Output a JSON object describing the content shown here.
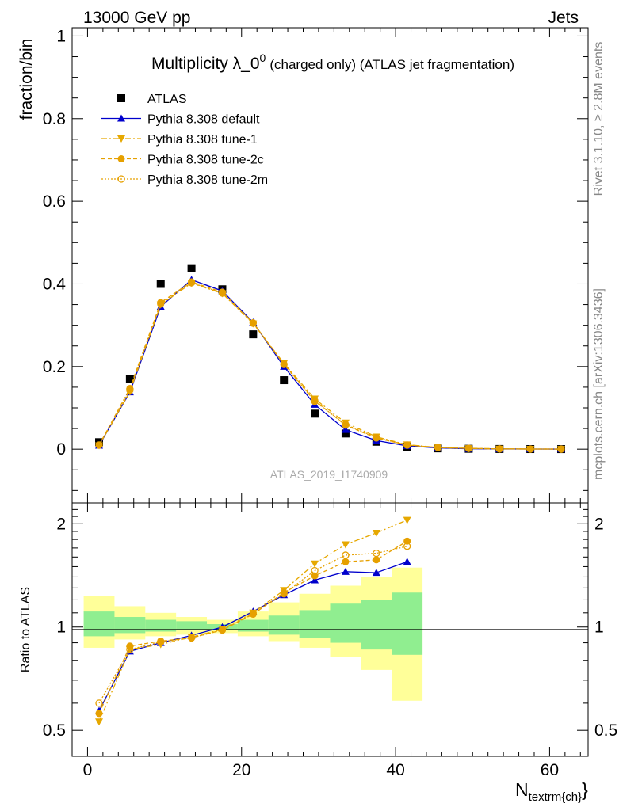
{
  "header": {
    "energy": "13000 GeV pp",
    "process": "Jets"
  },
  "side_text": {
    "rivet": "Rivet 3.1.10, ≥ 2.8M events",
    "mcplots": "mcplots.cern.ch [arXiv:1306.3436]"
  },
  "watermark": "ATLAS_2019_I1740909",
  "chart_data": [
    {
      "type": "scatter",
      "title": "Multiplicity λ_0^0 (charged only) (ATLAS jet fragmentation)",
      "title_main": "Multiplicity λ_0",
      "title_sup": "0",
      "title_rest": "(charged only) (ATLAS jet fragmentation)",
      "ylabel": "fraction/bin",
      "xlabel": "N_textrm{ch}",
      "xlabel_main": "N",
      "xlabel_sub": "textrm{ch}",
      "xlabel_tail": "}",
      "xlim": [
        -2,
        65
      ],
      "ylim": [
        -0.13,
        1.02
      ],
      "yticks": [
        0,
        0.2,
        0.4,
        0.6,
        0.8,
        1
      ],
      "ytick_labels": [
        "0",
        "0.2",
        "0.4",
        "0.6",
        "0.8",
        "1"
      ],
      "xticks": [
        0,
        20,
        40,
        60
      ],
      "xtick_labels": [
        "0",
        "20",
        "40",
        "60"
      ],
      "legend_position": "top-left",
      "x": [
        1.5,
        5.5,
        9.5,
        13.5,
        17.5,
        21.5,
        25.5,
        29.5,
        33.5,
        37.5,
        41.5,
        45.5,
        49.5,
        53.5,
        57.5,
        61.5
      ],
      "series": [
        {
          "name": "ATLAS",
          "color": "#000000",
          "marker": "square",
          "line": "none",
          "values": [
            0.017,
            0.17,
            0.4,
            0.438,
            0.387,
            0.278,
            0.167,
            0.086,
            0.038,
            0.018,
            0.006,
            0.002,
            0.001,
            0.0005,
            0.0003,
            0.0002
          ]
        },
        {
          "name": "Pythia 8.308 default",
          "color": "#0000cc",
          "marker": "triangle-up",
          "line": "solid",
          "values": [
            0.009,
            0.138,
            0.345,
            0.41,
            0.383,
            0.307,
            0.2,
            0.108,
            0.047,
            0.021,
            0.008,
            0.003,
            0.001,
            0.0005,
            0.0003,
            0.0002
          ]
        },
        {
          "name": "Pythia 8.308 tune-1",
          "color": "#e6a800",
          "marker": "triangle-down",
          "line": "dashdot",
          "values": [
            0.009,
            0.139,
            0.35,
            0.402,
            0.377,
            0.304,
            0.208,
            0.122,
            0.064,
            0.03,
            0.011,
            0.004,
            0.002,
            0.0008,
            0.0004,
            0.0002
          ]
        },
        {
          "name": "Pythia 8.308 tune-2c",
          "color": "#e6a000",
          "marker": "circle",
          "line": "dashed",
          "values": [
            0.01,
            0.147,
            0.355,
            0.405,
            0.38,
            0.306,
            0.206,
            0.118,
            0.058,
            0.027,
            0.01,
            0.004,
            0.002,
            0.0007,
            0.0004,
            0.0002
          ]
        },
        {
          "name": "Pythia 8.308 tune-2m",
          "color": "#e6a000",
          "marker": "circle-open",
          "line": "dotted",
          "values": [
            0.01,
            0.143,
            0.352,
            0.403,
            0.378,
            0.305,
            0.205,
            0.116,
            0.06,
            0.028,
            0.01,
            0.004,
            0.002,
            0.0007,
            0.0004,
            0.0002
          ]
        }
      ]
    },
    {
      "type": "scatter",
      "ylabel": "Ratio to ATLAS",
      "ylim": [
        0.42,
        2.3
      ],
      "yticks": [
        0.5,
        1,
        2
      ],
      "ytick_labels": [
        "0.5",
        "1",
        "2"
      ],
      "reference_line": 1,
      "bands": {
        "edges": [
          -0.5,
          3.5,
          7.5,
          11.5,
          15.5,
          19.5,
          23.5,
          27.5,
          31.5,
          35.5,
          39.5,
          43.5
        ],
        "stat_color": "#90ee90",
        "total_color": "#ffff99",
        "stat": [
          [
            0.94,
            1.11
          ],
          [
            0.96,
            1.07
          ],
          [
            0.97,
            1.05
          ],
          [
            0.98,
            1.04
          ],
          [
            0.985,
            1.02
          ],
          [
            0.97,
            1.05
          ],
          [
            0.95,
            1.08
          ],
          [
            0.93,
            1.12
          ],
          [
            0.9,
            1.17
          ],
          [
            0.86,
            1.2
          ],
          [
            0.83,
            1.26
          ]
        ],
        "total": [
          [
            0.87,
            1.23
          ],
          [
            0.92,
            1.15
          ],
          [
            0.94,
            1.1
          ],
          [
            0.95,
            1.07
          ],
          [
            0.96,
            1.05
          ],
          [
            0.94,
            1.11
          ],
          [
            0.91,
            1.18
          ],
          [
            0.87,
            1.25
          ],
          [
            0.82,
            1.32
          ],
          [
            0.75,
            1.4
          ],
          [
            0.61,
            1.49
          ]
        ]
      },
      "x": [
        1.5,
        5.5,
        9.5,
        13.5,
        17.5,
        21.5,
        25.5,
        29.5,
        33.5,
        37.5,
        41.5
      ],
      "series": [
        {
          "name": "Pythia 8.308 default",
          "color": "#0000cc",
          "marker": "triangle-up",
          "line": "solid",
          "values": [
            0.57,
            0.85,
            0.9,
            0.945,
            1.0,
            1.11,
            1.24,
            1.37,
            1.45,
            1.44,
            1.55
          ]
        },
        {
          "name": "Pythia 8.308 tune-1",
          "color": "#e6a800",
          "marker": "triangle-down",
          "line": "dashdot",
          "values": [
            0.53,
            0.86,
            0.89,
            0.935,
            0.985,
            1.1,
            1.28,
            1.53,
            1.74,
            1.88,
            2.05
          ]
        },
        {
          "name": "Pythia 8.308 tune-2c",
          "color": "#e6a000",
          "marker": "circle",
          "line": "dashed",
          "values": [
            0.56,
            0.88,
            0.91,
            0.93,
            0.98,
            1.09,
            1.26,
            1.41,
            1.55,
            1.57,
            1.78
          ]
        },
        {
          "name": "Pythia 8.308 tune-2m",
          "color": "#e6a000",
          "marker": "circle-open",
          "line": "dotted",
          "values": [
            0.6,
            0.86,
            0.905,
            0.93,
            0.98,
            1.095,
            1.25,
            1.46,
            1.62,
            1.64,
            1.72
          ]
        }
      ]
    }
  ]
}
